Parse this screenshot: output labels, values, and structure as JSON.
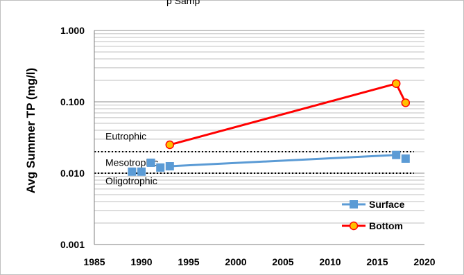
{
  "chart_data": {
    "type": "scatter",
    "title": "",
    "xlabel": "",
    "ylabel": "Avg Summer TP (mg/l)",
    "xlim": [
      1985,
      2020
    ],
    "ylim": [
      0.001,
      1.0
    ],
    "yscale": "log",
    "xticks": [
      "1985",
      "1990",
      "1995",
      "2000",
      "2005",
      "2010",
      "2015",
      "2020"
    ],
    "yticks": [
      "0.001",
      "0.010",
      "0.100",
      "1.000"
    ],
    "grid": "horizontal minor and major lines",
    "legend_position": "bottom-right",
    "series": [
      {
        "name": "Surface",
        "color": "#5b9bd5",
        "marker": "square",
        "points": [
          {
            "x": 1989,
            "y": 0.0105
          },
          {
            "x": 1990,
            "y": 0.0105
          },
          {
            "x": 1991,
            "y": 0.014
          },
          {
            "x": 1992,
            "y": 0.012
          },
          {
            "x": 1993,
            "y": 0.0125
          },
          {
            "x": 2017,
            "y": 0.018
          },
          {
            "x": 2018,
            "y": 0.016
          }
        ],
        "lines": [
          [
            1993,
            2017
          ]
        ]
      },
      {
        "name": "Bottom",
        "color": "#ff0000",
        "marker": "circle",
        "marker_fill": "#ffc000",
        "points": [
          {
            "x": 1993,
            "y": 0.025
          },
          {
            "x": 2017,
            "y": 0.18
          },
          {
            "x": 2018,
            "y": 0.097
          }
        ],
        "lines": [
          [
            1993,
            2017
          ],
          [
            2017,
            2018
          ]
        ]
      }
    ],
    "thresholds": [
      {
        "y": 0.02,
        "style": "dotted"
      },
      {
        "y": 0.01,
        "style": "dotted"
      }
    ],
    "zone_labels": [
      {
        "text": "Eutrophic",
        "y": 0.033
      },
      {
        "text": "Mesotrophic",
        "y": 0.0142
      },
      {
        "text": "Oligotrophic",
        "y": 0.0078
      }
    ],
    "top_text": "p Samp"
  }
}
